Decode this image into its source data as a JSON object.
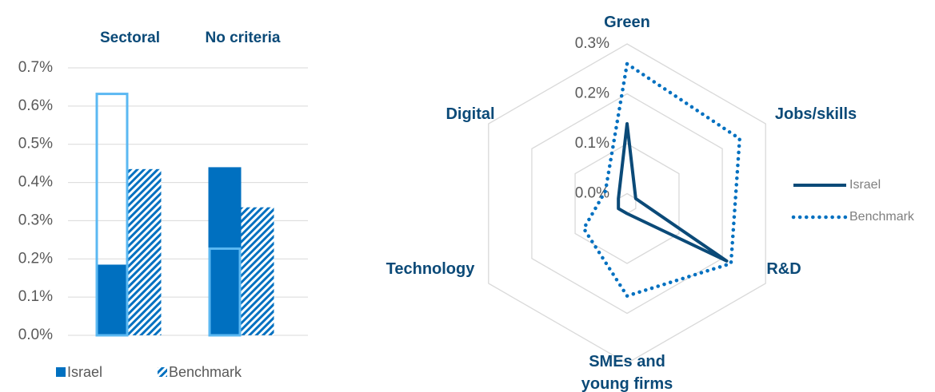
{
  "chart_data": [
    {
      "type": "bar",
      "categories": [
        "Sectoral",
        "No criteria"
      ],
      "series": [
        {
          "name": "Israel",
          "color": "#0070c0",
          "style": "solid",
          "values": [
            0.185,
            0.44
          ]
        },
        {
          "name": "Benchmark",
          "color": "#0070c0",
          "style": "hatch",
          "values": [
            0.435,
            0.335
          ]
        },
        {
          "color": "#5bb8f2",
          "style": "outline",
          "values": [
            0.635,
            0.23
          ]
        }
      ],
      "ylim": [
        0,
        0.7
      ],
      "yticks": [
        {
          "value": 0,
          "label": "0.0%"
        },
        {
          "value": 0.1,
          "label": "0.1%"
        },
        {
          "value": 0.2,
          "label": "0.2%"
        },
        {
          "value": 0.3,
          "label": "0.3%"
        },
        {
          "value": 0.4,
          "label": "0.4%"
        },
        {
          "value": 0.5,
          "label": "0.5%"
        },
        {
          "value": 0.6,
          "label": "0.6%"
        },
        {
          "value": 0.7,
          "label": "0.7%"
        }
      ],
      "grid": true
    },
    {
      "type": "radar",
      "categories": [
        "Green",
        "Jobs/skills",
        "R&D",
        "SMEs and young firms",
        "Technology",
        "Digital"
      ],
      "series": [
        {
          "name": "Israel",
          "color": "#0b4a78",
          "style": "solid",
          "values": [
            0.14,
            0.0,
            0.21,
            0.0,
            0.0,
            0.0
          ]
        },
        {
          "name": "Benchmark",
          "color": "#0070c0",
          "style": "dotted",
          "values": [
            0.26,
            0.24,
            0.22,
            0.165,
            0.08,
            0.03
          ]
        }
      ],
      "rlim": [
        -0.02,
        0.3
      ],
      "rticks": [
        {
          "value": 0,
          "label": "0.0%"
        },
        {
          "value": 0.1,
          "label": "0.1%"
        },
        {
          "value": 0.2,
          "label": "0.2%"
        },
        {
          "value": 0.3,
          "label": "0.3%"
        }
      ],
      "grid": true,
      "legend": "right"
    }
  ]
}
